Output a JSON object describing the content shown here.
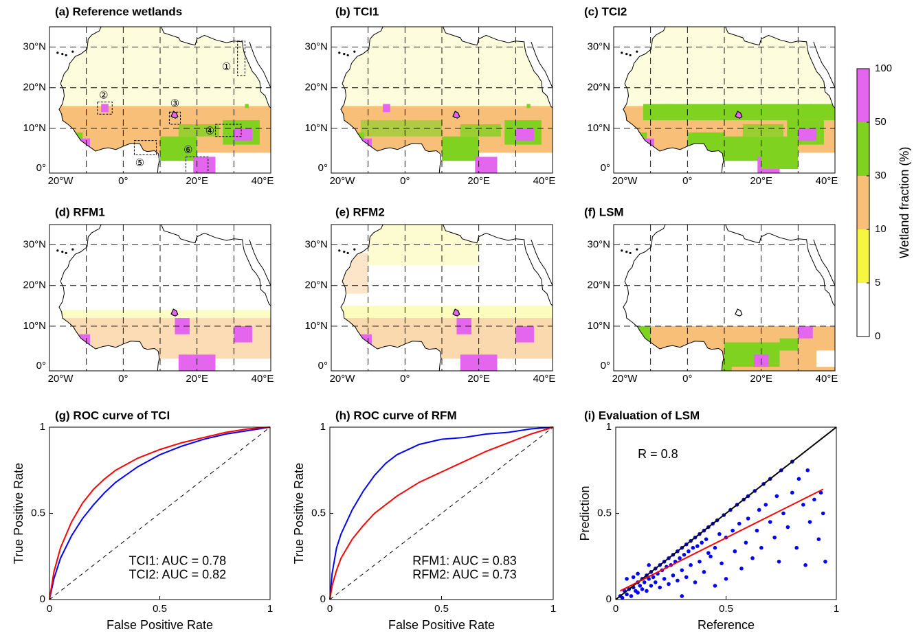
{
  "chart_data": [
    {
      "type": "map",
      "title": "(a) Reference wetlands",
      "xlim": [
        -20,
        40
      ],
      "ylim": [
        -1,
        35
      ],
      "xticks": [
        {
          "value": -20,
          "label": "20°W"
        },
        {
          "value": 0,
          "label": "0°"
        },
        {
          "value": 20,
          "label": "20°E"
        },
        {
          "value": 40,
          "label": "40°E"
        }
      ],
      "yticks": [
        {
          "value": 0,
          "label": "0°"
        },
        {
          "value": 10,
          "label": "10°N"
        },
        {
          "value": 20,
          "label": "20°N"
        },
        {
          "value": 30,
          "label": "30°N"
        }
      ],
      "xgrid": [
        -10,
        0,
        10,
        20,
        30
      ],
      "ygrid": [
        10,
        20,
        30
      ],
      "annotations": [
        "①",
        "②",
        "③",
        "④",
        "⑤",
        "⑥"
      ]
    },
    {
      "type": "map",
      "title": "(b) TCI1",
      "xlim": [
        -20,
        40
      ],
      "ylim": [
        -1,
        35
      ],
      "xticks": [
        {
          "value": -20,
          "label": "20°W"
        },
        {
          "value": 0,
          "label": "0°"
        },
        {
          "value": 20,
          "label": "20°E"
        },
        {
          "value": 40,
          "label": "40°E"
        }
      ],
      "yticks": [
        {
          "value": 0,
          "label": "0°"
        },
        {
          "value": 10,
          "label": "10°N"
        },
        {
          "value": 20,
          "label": "20°N"
        },
        {
          "value": 30,
          "label": "30°N"
        }
      ],
      "xgrid": [
        -10,
        0,
        10,
        20,
        30
      ],
      "ygrid": [
        10,
        20,
        30
      ]
    },
    {
      "type": "map",
      "title": "(c) TCI2",
      "xlim": [
        -20,
        40
      ],
      "ylim": [
        -1,
        35
      ],
      "xticks": [
        {
          "value": -20,
          "label": "20°W"
        },
        {
          "value": 0,
          "label": "0°"
        },
        {
          "value": 20,
          "label": "20°E"
        },
        {
          "value": 40,
          "label": "40°E"
        }
      ],
      "yticks": [
        {
          "value": 0,
          "label": "0°"
        },
        {
          "value": 10,
          "label": "10°N"
        },
        {
          "value": 20,
          "label": "20°N"
        },
        {
          "value": 30,
          "label": "30°N"
        }
      ],
      "xgrid": [
        -10,
        0,
        10,
        20,
        30
      ],
      "ygrid": [
        10,
        20,
        30
      ]
    },
    {
      "type": "map",
      "title": "(d) RFM1",
      "xlim": [
        -20,
        40
      ],
      "ylim": [
        -1,
        35
      ],
      "xticks": [
        {
          "value": -20,
          "label": "20°W"
        },
        {
          "value": 0,
          "label": "0°"
        },
        {
          "value": 20,
          "label": "20°E"
        },
        {
          "value": 40,
          "label": "40°E"
        }
      ],
      "yticks": [
        {
          "value": 0,
          "label": "0°"
        },
        {
          "value": 10,
          "label": "10°N"
        },
        {
          "value": 20,
          "label": "20°N"
        },
        {
          "value": 30,
          "label": "30°N"
        }
      ],
      "xgrid": [
        -10,
        0,
        10,
        20,
        30
      ],
      "ygrid": [
        10,
        20,
        30
      ]
    },
    {
      "type": "map",
      "title": "(e) RFM2",
      "xlim": [
        -20,
        40
      ],
      "ylim": [
        -1,
        35
      ],
      "xticks": [
        {
          "value": -20,
          "label": "20°W"
        },
        {
          "value": 0,
          "label": "0°"
        },
        {
          "value": 20,
          "label": "20°E"
        },
        {
          "value": 40,
          "label": "40°E"
        }
      ],
      "yticks": [
        {
          "value": 0,
          "label": "0°"
        },
        {
          "value": 10,
          "label": "10°N"
        },
        {
          "value": 20,
          "label": "20°N"
        },
        {
          "value": 30,
          "label": "30°N"
        }
      ],
      "xgrid": [
        -10,
        0,
        10,
        20,
        30
      ],
      "ygrid": [
        10,
        20,
        30
      ]
    },
    {
      "type": "map",
      "title": "(f) LSM",
      "xlim": [
        -20,
        40
      ],
      "ylim": [
        -1,
        35
      ],
      "xticks": [
        {
          "value": -20,
          "label": "20°W"
        },
        {
          "value": 0,
          "label": "0°"
        },
        {
          "value": 20,
          "label": "20°E"
        },
        {
          "value": 40,
          "label": "40°E"
        }
      ],
      "yticks": [
        {
          "value": 0,
          "label": "0°"
        },
        {
          "value": 10,
          "label": "10°N"
        },
        {
          "value": 20,
          "label": "20°N"
        },
        {
          "value": 30,
          "label": "30°N"
        }
      ],
      "xgrid": [
        -10,
        0,
        10,
        20,
        30
      ],
      "ygrid": [
        10,
        20,
        30
      ]
    },
    {
      "type": "colorbar",
      "label": "Wetland fraction (%)",
      "ticks": [
        0,
        5,
        10,
        30,
        50,
        100
      ],
      "colors": [
        "#ffffff",
        "#f5f542",
        "#f8bf78",
        "#7fd21f",
        "#e466ee"
      ]
    },
    {
      "type": "line",
      "title": "(g) ROC curve of TCI",
      "xlabel": "False Positive Rate",
      "ylabel": "True Positive Rate",
      "xlim": [
        0,
        1
      ],
      "ylim": [
        0,
        1
      ],
      "xticks": [
        0,
        0.5,
        1
      ],
      "yticks": [
        0,
        0.5,
        1
      ],
      "diagonal": true,
      "series": [
        {
          "name": "TCI1: AUC = 0.78",
          "color": "#0000ff",
          "x": [
            0,
            0.02,
            0.05,
            0.1,
            0.15,
            0.2,
            0.25,
            0.3,
            0.4,
            0.5,
            0.6,
            0.7,
            0.8,
            0.9,
            1
          ],
          "values": [
            0,
            0.12,
            0.24,
            0.37,
            0.47,
            0.55,
            0.62,
            0.68,
            0.77,
            0.84,
            0.89,
            0.93,
            0.96,
            0.98,
            1
          ]
        },
        {
          "name": "TCI2: AUC = 0.82",
          "color": "#ff0000",
          "x": [
            0,
            0.02,
            0.05,
            0.1,
            0.15,
            0.2,
            0.25,
            0.3,
            0.4,
            0.5,
            0.6,
            0.7,
            0.8,
            0.9,
            1
          ],
          "values": [
            0,
            0.16,
            0.3,
            0.45,
            0.56,
            0.64,
            0.7,
            0.75,
            0.82,
            0.87,
            0.91,
            0.94,
            0.97,
            0.99,
            1
          ]
        }
      ]
    },
    {
      "type": "line",
      "title": "(h) ROC curve of RFM",
      "xlabel": "False Positive Rate",
      "ylabel": "True Positive Rate",
      "xlim": [
        0,
        1
      ],
      "ylim": [
        0,
        1
      ],
      "xticks": [
        0,
        0.5,
        1
      ],
      "yticks": [
        0,
        0.5,
        1
      ],
      "diagonal": true,
      "series": [
        {
          "name": "RFM1: AUC = 0.83",
          "color": "#0000ff",
          "x": [
            0,
            0.01,
            0.03,
            0.05,
            0.1,
            0.15,
            0.2,
            0.25,
            0.3,
            0.4,
            0.5,
            0.6,
            0.7,
            0.8,
            0.9,
            1
          ],
          "values": [
            0,
            0.15,
            0.3,
            0.38,
            0.52,
            0.63,
            0.72,
            0.79,
            0.84,
            0.9,
            0.93,
            0.94,
            0.96,
            0.97,
            0.99,
            1
          ]
        },
        {
          "name": "RFM2: AUC = 0.73",
          "color": "#ff0000",
          "x": [
            0,
            0.01,
            0.03,
            0.05,
            0.1,
            0.15,
            0.2,
            0.25,
            0.3,
            0.4,
            0.5,
            0.6,
            0.7,
            0.8,
            0.9,
            1
          ],
          "values": [
            0,
            0.08,
            0.17,
            0.24,
            0.35,
            0.43,
            0.5,
            0.55,
            0.6,
            0.68,
            0.74,
            0.8,
            0.86,
            0.91,
            0.96,
            1
          ]
        }
      ]
    },
    {
      "type": "scatter",
      "title": "(i) Evaluation of LSM",
      "xlabel": "Reference",
      "ylabel": "Prediction",
      "xlim": [
        0,
        1
      ],
      "ylim": [
        0,
        1
      ],
      "xticks": [
        0,
        0.5,
        1
      ],
      "yticks": [
        0,
        0.5,
        1
      ],
      "annotation": "R = 0.8",
      "series": [
        {
          "type": "scatter",
          "color": "#0000ff",
          "x": [
            0.02,
            0.03,
            0.04,
            0.05,
            0.06,
            0.07,
            0.08,
            0.09,
            0.1,
            0.1,
            0.11,
            0.12,
            0.12,
            0.13,
            0.14,
            0.14,
            0.15,
            0.16,
            0.16,
            0.17,
            0.18,
            0.18,
            0.19,
            0.2,
            0.2,
            0.21,
            0.22,
            0.22,
            0.23,
            0.24,
            0.24,
            0.25,
            0.26,
            0.26,
            0.27,
            0.28,
            0.28,
            0.29,
            0.3,
            0.3,
            0.31,
            0.32,
            0.32,
            0.33,
            0.34,
            0.34,
            0.35,
            0.36,
            0.36,
            0.37,
            0.38,
            0.38,
            0.39,
            0.4,
            0.4,
            0.41,
            0.42,
            0.42,
            0.43,
            0.44,
            0.45,
            0.46,
            0.47,
            0.48,
            0.49,
            0.5,
            0.5,
            0.52,
            0.53,
            0.54,
            0.55,
            0.56,
            0.57,
            0.58,
            0.59,
            0.6,
            0.6,
            0.62,
            0.63,
            0.64,
            0.65,
            0.66,
            0.67,
            0.68,
            0.7,
            0.7,
            0.72,
            0.73,
            0.74,
            0.75,
            0.76,
            0.78,
            0.8,
            0.8,
            0.82,
            0.83,
            0.85,
            0.86,
            0.87,
            0.88,
            0.9,
            0.92,
            0.93,
            0.94,
            0.95,
            0.3,
            0.45,
            0.05,
            0.1,
            0.15,
            0.08
          ],
          "values": [
            0.02,
            0.01,
            0.05,
            0.03,
            0.06,
            0.02,
            0.07,
            0.05,
            0.1,
            0.04,
            0.08,
            0.12,
            0.06,
            0.1,
            0.14,
            0.05,
            0.12,
            0.16,
            0.08,
            0.13,
            0.18,
            0.1,
            0.15,
            0.2,
            0.07,
            0.17,
            0.22,
            0.12,
            0.19,
            0.24,
            0.09,
            0.2,
            0.26,
            0.14,
            0.22,
            0.28,
            0.11,
            0.24,
            0.3,
            0.17,
            0.26,
            0.32,
            0.13,
            0.28,
            0.34,
            0.2,
            0.3,
            0.36,
            0.1,
            0.31,
            0.38,
            0.22,
            0.33,
            0.4,
            0.16,
            0.35,
            0.42,
            0.27,
            0.25,
            0.44,
            0.3,
            0.46,
            0.38,
            0.21,
            0.49,
            0.36,
            0.12,
            0.52,
            0.4,
            0.28,
            0.55,
            0.44,
            0.18,
            0.58,
            0.33,
            0.6,
            0.47,
            0.24,
            0.63,
            0.4,
            0.52,
            0.3,
            0.67,
            0.55,
            0.45,
            0.7,
            0.36,
            0.6,
            0.22,
            0.75,
            0.5,
            0.42,
            0.8,
            0.62,
            0.3,
            0.7,
            0.55,
            0.2,
            0.75,
            0.45,
            0.58,
            0.35,
            0.62,
            0.5,
            0.22,
            0.02,
            0.08,
            0.12,
            0.15,
            0.2,
            0.13
          ]
        },
        {
          "type": "line",
          "color": "#000000",
          "x": [
            0,
            1
          ],
          "values": [
            0,
            1
          ]
        },
        {
          "type": "line",
          "color": "#ff0000",
          "x": [
            0.02,
            0.94
          ],
          "values": [
            0.05,
            0.64
          ]
        }
      ]
    }
  ]
}
